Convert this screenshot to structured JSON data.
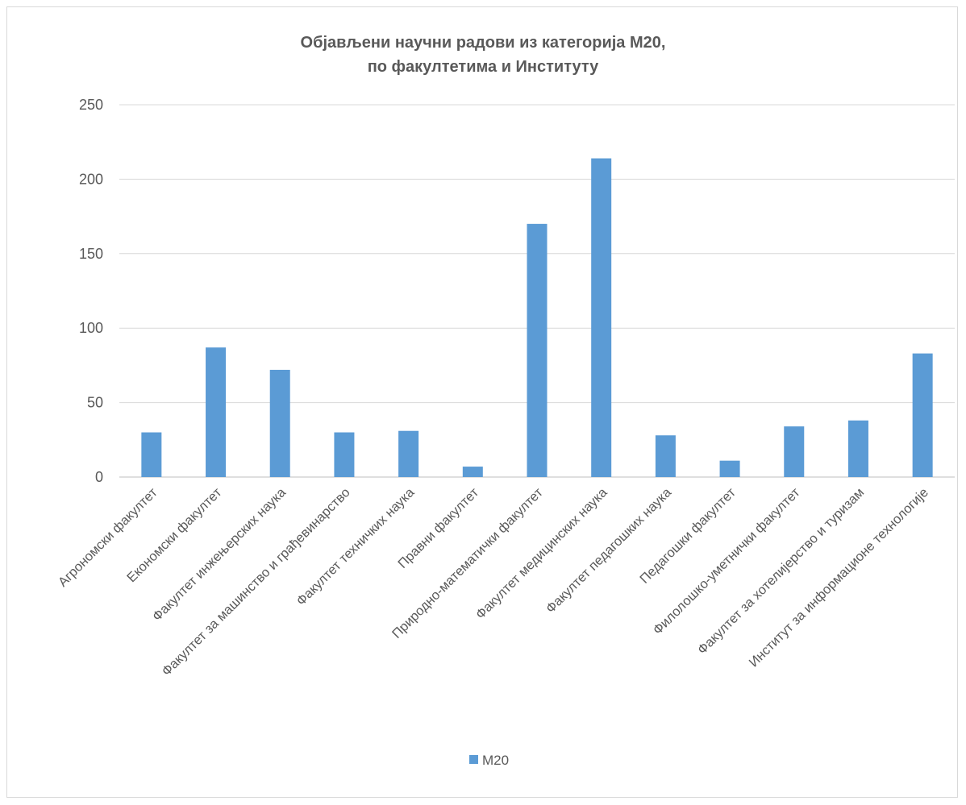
{
  "chart_data": {
    "type": "bar",
    "title_lines": [
      "Објављени  научни радови из категорија М20,",
      "по факултетима и Институту"
    ],
    "categories": [
      "Агрономски факултет",
      "Економски факултет",
      "Факултет инжењерских наука",
      "Факултет за машинство и грађевинарство",
      "Факултет техничких наука",
      "Правни факултет",
      "Природно-математички факултет",
      "Факултет медицинских наука",
      "Факултет педагошких наука",
      "Педагошки факултет",
      "Филолошко-уметнички факултет",
      "Факултет за хотелијерство и туризам",
      "Институт за информационе технологије"
    ],
    "series": [
      {
        "name": "М20",
        "color": "#5b9bd5",
        "values": [
          30,
          87,
          72,
          30,
          31,
          7,
          170,
          214,
          28,
          11,
          34,
          38,
          83
        ]
      }
    ],
    "ylim": [
      0,
      250
    ],
    "yticks": [
      "0",
      "50",
      "100",
      "150",
      "200",
      "250"
    ],
    "grid": true,
    "legend_position": "bottom"
  }
}
